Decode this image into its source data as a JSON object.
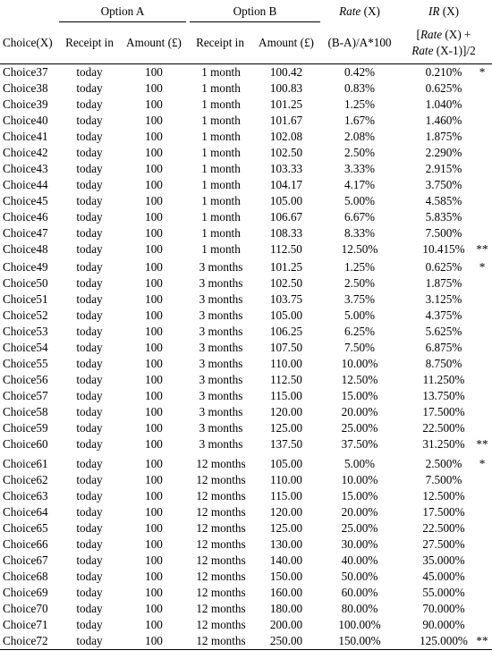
{
  "header": {
    "option_a": "Option A",
    "option_b": "Option B",
    "rate_top": "Rate (X)",
    "ir_top": "IR (X)",
    "choice_col": "Choice(X)",
    "receipt_a": "Receipt in",
    "amount_a": "Amount (£)",
    "receipt_b": "Receipt in",
    "amount_b": "Amount (£)",
    "rate_formula": "(B-A)/A*100",
    "ir_formula_1": "[Rate (X) +",
    "ir_formula_2": "Rate (X-1)]/2"
  },
  "groups": [
    [
      [
        "Choice37",
        "today",
        "100",
        "1 month",
        "100.42",
        "0.42%",
        "0.210%",
        "*"
      ],
      [
        "Choice38",
        "today",
        "100",
        "1 month",
        "100.83",
        "0.83%",
        "0.625%",
        ""
      ],
      [
        "Choice39",
        "today",
        "100",
        "1 month",
        "101.25",
        "1.25%",
        "1.040%",
        ""
      ],
      [
        "Choice40",
        "today",
        "100",
        "1 month",
        "101.67",
        "1.67%",
        "1.460%",
        ""
      ],
      [
        "Choice41",
        "today",
        "100",
        "1 month",
        "102.08",
        "2.08%",
        "1.875%",
        ""
      ],
      [
        "Choice42",
        "today",
        "100",
        "1 month",
        "102.50",
        "2.50%",
        "2.290%",
        ""
      ],
      [
        "Choice43",
        "today",
        "100",
        "1 month",
        "103.33",
        "3.33%",
        "2.915%",
        ""
      ],
      [
        "Choice44",
        "today",
        "100",
        "1 month",
        "104.17",
        "4.17%",
        "3.750%",
        ""
      ],
      [
        "Choice45",
        "today",
        "100",
        "1 month",
        "105.00",
        "5.00%",
        "4.585%",
        ""
      ],
      [
        "Choice46",
        "today",
        "100",
        "1 month",
        "106.67",
        "6.67%",
        "5.835%",
        ""
      ],
      [
        "Choice47",
        "today",
        "100",
        "1 month",
        "108.33",
        "8.33%",
        "7.500%",
        ""
      ],
      [
        "Choice48",
        "today",
        "100",
        "1 month",
        "112.50",
        "12.50%",
        "10.415%",
        "**"
      ]
    ],
    [
      [
        "Choice49",
        "today",
        "100",
        "3 months",
        "101.25",
        "1.25%",
        "0.625%",
        "*"
      ],
      [
        "Choice50",
        "today",
        "100",
        "3 months",
        "102.50",
        "2.50%",
        "1.875%",
        ""
      ],
      [
        "Choice51",
        "today",
        "100",
        "3 months",
        "103.75",
        "3.75%",
        "3.125%",
        ""
      ],
      [
        "Choice52",
        "today",
        "100",
        "3 months",
        "105.00",
        "5.00%",
        "4.375%",
        ""
      ],
      [
        "Choice53",
        "today",
        "100",
        "3 months",
        "106.25",
        "6.25%",
        "5.625%",
        ""
      ],
      [
        "Choice54",
        "today",
        "100",
        "3 months",
        "107.50",
        "7.50%",
        "6.875%",
        ""
      ],
      [
        "Choice55",
        "today",
        "100",
        "3 months",
        "110.00",
        "10.00%",
        "8.750%",
        ""
      ],
      [
        "Choice56",
        "today",
        "100",
        "3 months",
        "112.50",
        "12.50%",
        "11.250%",
        ""
      ],
      [
        "Choice57",
        "today",
        "100",
        "3 months",
        "115.00",
        "15.00%",
        "13.750%",
        ""
      ],
      [
        "Choice58",
        "today",
        "100",
        "3 months",
        "120.00",
        "20.00%",
        "17.500%",
        ""
      ],
      [
        "Choice59",
        "today",
        "100",
        "3 months",
        "125.00",
        "25.00%",
        "22.500%",
        ""
      ],
      [
        "Choice60",
        "today",
        "100",
        "3 months",
        "137.50",
        "37.50%",
        "31.250%",
        "**"
      ]
    ],
    [
      [
        "Choice61",
        "today",
        "100",
        "12 months",
        "105.00",
        "5.00%",
        "2.500%",
        "*"
      ],
      [
        "Choice62",
        "today",
        "100",
        "12 months",
        "110.00",
        "10.00%",
        "7.500%",
        ""
      ],
      [
        "Choice63",
        "today",
        "100",
        "12 months",
        "115.00",
        "15.00%",
        "12.500%",
        ""
      ],
      [
        "Choice64",
        "today",
        "100",
        "12 months",
        "120.00",
        "20.00%",
        "17.500%",
        ""
      ],
      [
        "Choice65",
        "today",
        "100",
        "12 months",
        "125.00",
        "25.00%",
        "22.500%",
        ""
      ],
      [
        "Choice66",
        "today",
        "100",
        "12 months",
        "130.00",
        "30.00%",
        "27.500%",
        ""
      ],
      [
        "Choice67",
        "today",
        "100",
        "12 months",
        "140.00",
        "40.00%",
        "35.000%",
        ""
      ],
      [
        "Choice68",
        "today",
        "100",
        "12 months",
        "150.00",
        "50.00%",
        "45.000%",
        ""
      ],
      [
        "Choice69",
        "today",
        "100",
        "12 months",
        "160.00",
        "60.00%",
        "55.000%",
        ""
      ],
      [
        "Choice70",
        "today",
        "100",
        "12 months",
        "180.00",
        "80.00%",
        "70.000%",
        ""
      ],
      [
        "Choice71",
        "today",
        "100",
        "12 months",
        "200.00",
        "100.00%",
        "90.000%",
        ""
      ],
      [
        "Choice72",
        "today",
        "100",
        "12 months",
        "250.00",
        "150.00%",
        "125.000%",
        "**"
      ]
    ]
  ]
}
